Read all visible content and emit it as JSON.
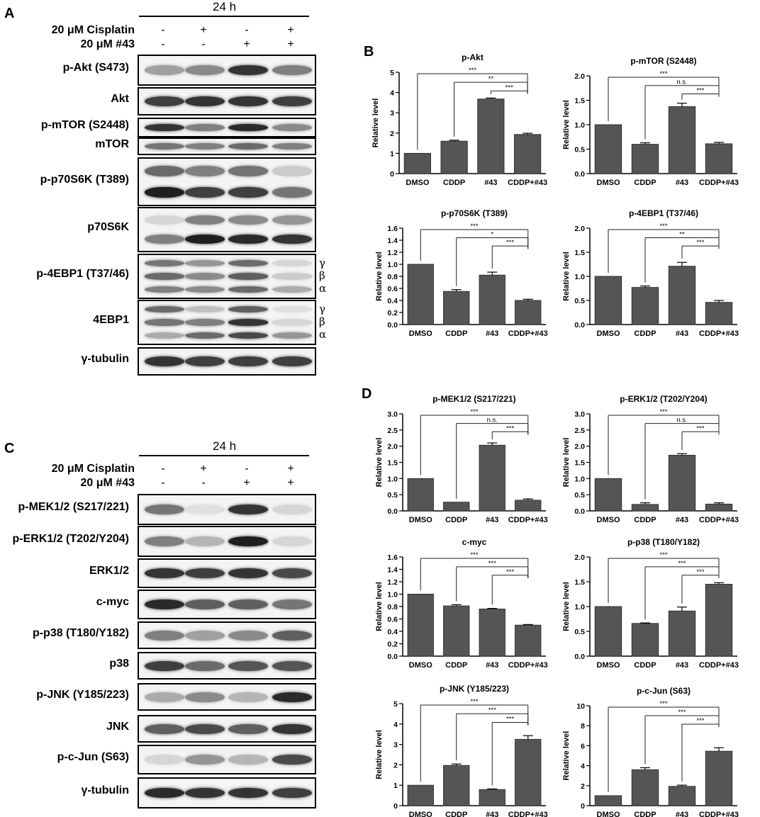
{
  "panels": {
    "A": "A",
    "B": "B",
    "C": "C",
    "D": "D"
  },
  "blotA": {
    "time": "24 h",
    "cisplatin_label": "20 μM Cisplatin",
    "c43_label": "20 μM #43",
    "cisplatin_signs": [
      "-",
      "+",
      "-",
      "+"
    ],
    "c43_signs": [
      "-",
      "-",
      "+",
      "+"
    ],
    "rows": [
      {
        "label": "p-Akt (S473)",
        "bands": [
          [
            0.35
          ],
          [
            0.45
          ],
          [
            0.85
          ],
          [
            0.5
          ]
        ]
      },
      {
        "label": "Akt",
        "bands": [
          [
            0.8
          ],
          [
            0.85
          ],
          [
            0.85
          ],
          [
            0.8
          ]
        ]
      },
      {
        "label": "p-mTOR (S2448)",
        "bands": [
          [
            0.85
          ],
          [
            0.5
          ],
          [
            0.9
          ],
          [
            0.45
          ]
        ]
      },
      {
        "label": "mTOR",
        "bands": [
          [
            0.55
          ],
          [
            0.5
          ],
          [
            0.6
          ],
          [
            0.5
          ]
        ]
      },
      {
        "label": "p-p70S6K (T389)",
        "bands": [
          [
            0.6,
            0.95
          ],
          [
            0.5,
            0.8
          ],
          [
            0.55,
            0.8
          ],
          [
            0.15,
            0.55
          ]
        ]
      },
      {
        "label": "p70S6K",
        "bands": [
          [
            0.1,
            0.5
          ],
          [
            0.5,
            0.95
          ],
          [
            0.45,
            0.9
          ],
          [
            0.4,
            0.85
          ]
        ]
      },
      {
        "label": "p-4EBP1 (T37/46)",
        "bands": [
          [
            0.55,
            0.6,
            0.5
          ],
          [
            0.4,
            0.45,
            0.45
          ],
          [
            0.6,
            0.65,
            0.6
          ],
          [
            0.1,
            0.15,
            0.3
          ]
        ]
      },
      {
        "label": "4EBP1",
        "bands": [
          [
            0.6,
            0.55,
            0.3
          ],
          [
            0.2,
            0.5,
            0.6
          ],
          [
            0.65,
            0.85,
            0.75
          ],
          [
            0.05,
            0.1,
            0.4
          ]
        ]
      },
      {
        "label": "γ-tubulin",
        "bands": [
          [
            0.85
          ],
          [
            0.8
          ],
          [
            0.8
          ],
          [
            0.8
          ]
        ]
      }
    ],
    "greek_4ebp1p": [
      "γ",
      "β",
      "α"
    ],
    "greek_4ebp1": [
      "γ",
      "β",
      "α"
    ]
  },
  "blotC": {
    "time": "24 h",
    "cisplatin_label": "20 μM Cisplatin",
    "c43_label": "20 μM #43",
    "cisplatin_signs": [
      "-",
      "+",
      "-",
      "+"
    ],
    "c43_signs": [
      "-",
      "-",
      "+",
      "+"
    ],
    "rows": [
      {
        "label": "p-MEK1/2 (S217/221)",
        "bands": [
          [
            0.55
          ],
          [
            0.05
          ],
          [
            0.85
          ],
          [
            0.1
          ]
        ]
      },
      {
        "label": "p-ERK1/2 (T202/Y204)",
        "bands": [
          [
            0.5
          ],
          [
            0.25
          ],
          [
            0.95
          ],
          [
            0.1
          ]
        ]
      },
      {
        "label": "ERK1/2",
        "bands": [
          [
            0.85
          ],
          [
            0.8
          ],
          [
            0.85
          ],
          [
            0.75
          ]
        ]
      },
      {
        "label": "c-myc",
        "bands": [
          [
            0.9
          ],
          [
            0.65
          ],
          [
            0.65
          ],
          [
            0.55
          ]
        ]
      },
      {
        "label": "p-p38 (T180/Y182)",
        "bands": [
          [
            0.5
          ],
          [
            0.35
          ],
          [
            0.45
          ],
          [
            0.65
          ]
        ]
      },
      {
        "label": "p38",
        "bands": [
          [
            0.8
          ],
          [
            0.6
          ],
          [
            0.7
          ],
          [
            0.7
          ]
        ]
      },
      {
        "label": "p-JNK (Y185/223)",
        "bands": [
          [
            0.3
          ],
          [
            0.45
          ],
          [
            0.25
          ],
          [
            0.9
          ]
        ]
      },
      {
        "label": "JNK",
        "bands": [
          [
            0.65
          ],
          [
            0.75
          ],
          [
            0.65
          ],
          [
            0.85
          ]
        ]
      },
      {
        "label": "p-c-Jun (S63)",
        "bands": [
          [
            0.1
          ],
          [
            0.4
          ],
          [
            0.25
          ],
          [
            0.75
          ]
        ]
      },
      {
        "label": "γ-tubulin",
        "bands": [
          [
            0.9
          ],
          [
            0.85
          ],
          [
            0.85
          ],
          [
            0.8
          ]
        ]
      }
    ]
  },
  "chart_data": [
    {
      "type": "bar",
      "title": "p-Akt",
      "ylabel": "Relative level",
      "categories": [
        "DMSO",
        "CDDP",
        "#43",
        "CDDP+#43"
      ],
      "values": [
        1.0,
        1.6,
        3.68,
        1.93
      ],
      "errors": [
        0,
        0.05,
        0.05,
        0.06
      ],
      "ylim": [
        0,
        5
      ],
      "yticks": [
        "0",
        "1",
        "2",
        "3",
        "4",
        "5"
      ],
      "sig": [
        {
          "from": 0,
          "to": 3,
          "label": "***"
        },
        {
          "from": 1,
          "to": 3,
          "label": "**"
        },
        {
          "from": 2,
          "to": 3,
          "label": "***"
        }
      ]
    },
    {
      "type": "bar",
      "title": "p-mTOR (S2448)",
      "ylabel": "Relative level",
      "categories": [
        "DMSO",
        "CDDP",
        "#43",
        "CDDP+#43"
      ],
      "values": [
        1.0,
        0.6,
        1.37,
        0.61
      ],
      "errors": [
        0,
        0.03,
        0.07,
        0.03
      ],
      "ylim": [
        0,
        2.0
      ],
      "yticks": [
        "0.0",
        "0.5",
        "1.0",
        "1.5",
        "2.0"
      ],
      "sig": [
        {
          "from": 0,
          "to": 3,
          "label": "***"
        },
        {
          "from": 1,
          "to": 3,
          "label": "n.s."
        },
        {
          "from": 2,
          "to": 3,
          "label": "***"
        }
      ]
    },
    {
      "type": "bar",
      "title": "p-p70S6K (T389)",
      "ylabel": "Relative level",
      "categories": [
        "DMSO",
        "CDDP",
        "#43",
        "CDDP+#43"
      ],
      "values": [
        1.0,
        0.55,
        0.82,
        0.4
      ],
      "errors": [
        0,
        0.03,
        0.05,
        0.02
      ],
      "ylim": [
        0,
        1.6
      ],
      "yticks": [
        "0.0",
        "0.2",
        "0.4",
        "0.6",
        "0.8",
        "1.0",
        "1.2",
        "1.4",
        "1.6"
      ],
      "sig": [
        {
          "from": 0,
          "to": 3,
          "label": "***"
        },
        {
          "from": 1,
          "to": 3,
          "label": "*"
        },
        {
          "from": 2,
          "to": 3,
          "label": "***"
        }
      ]
    },
    {
      "type": "bar",
      "title": "p-4EBP1 (T37/46)",
      "ylabel": "Relative level",
      "categories": [
        "DMSO",
        "CDDP",
        "#43",
        "CDDP+#43"
      ],
      "values": [
        1.0,
        0.77,
        1.21,
        0.46
      ],
      "errors": [
        0,
        0.03,
        0.08,
        0.04
      ],
      "ylim": [
        0,
        2.0
      ],
      "yticks": [
        "0.0",
        "0.5",
        "1.0",
        "1.5",
        "2.0"
      ],
      "sig": [
        {
          "from": 0,
          "to": 3,
          "label": "***"
        },
        {
          "from": 1,
          "to": 3,
          "label": "**"
        },
        {
          "from": 2,
          "to": 3,
          "label": "***"
        }
      ]
    },
    {
      "type": "bar",
      "title": "p-MEK1/2 (S217/221)",
      "ylabel": "Relative level",
      "categories": [
        "DMSO",
        "CDDP",
        "#43",
        "CDDP+#43"
      ],
      "values": [
        1.0,
        0.27,
        2.03,
        0.33
      ],
      "errors": [
        0,
        0,
        0.07,
        0.04
      ],
      "ylim": [
        0,
        3.0
      ],
      "yticks": [
        "0.0",
        "0.5",
        "1.0",
        "1.5",
        "2.0",
        "2.5",
        "3.0"
      ],
      "sig": [
        {
          "from": 0,
          "to": 3,
          "label": "***"
        },
        {
          "from": 1,
          "to": 3,
          "label": "n.s."
        },
        {
          "from": 2,
          "to": 3,
          "label": "***"
        }
      ]
    },
    {
      "type": "bar",
      "title": "p-ERK1/2 (T202/Y204)",
      "ylabel": "Relative level",
      "categories": [
        "DMSO",
        "CDDP",
        "#43",
        "CDDP+#43"
      ],
      "values": [
        1.0,
        0.2,
        1.72,
        0.21
      ],
      "errors": [
        0,
        0.05,
        0.05,
        0.04
      ],
      "ylim": [
        0,
        3.0
      ],
      "yticks": [
        "0.0",
        "0.5",
        "1.0",
        "1.5",
        "2.0",
        "2.5",
        "3.0"
      ],
      "sig": [
        {
          "from": 0,
          "to": 3,
          "label": "***"
        },
        {
          "from": 1,
          "to": 3,
          "label": "n.s."
        },
        {
          "from": 2,
          "to": 3,
          "label": "***"
        }
      ]
    },
    {
      "type": "bar",
      "title": "c-myc",
      "ylabel": "Relative level",
      "categories": [
        "DMSO",
        "CDDP",
        "#43",
        "CDDP+#43"
      ],
      "values": [
        1.0,
        0.81,
        0.76,
        0.5
      ],
      "errors": [
        0,
        0.02,
        0.01,
        0.01
      ],
      "ylim": [
        0,
        1.6
      ],
      "yticks": [
        "0.0",
        "0.2",
        "0.4",
        "0.6",
        "0.8",
        "1.0",
        "1.2",
        "1.4",
        "1.6"
      ],
      "sig": [
        {
          "from": 0,
          "to": 3,
          "label": "***"
        },
        {
          "from": 1,
          "to": 3,
          "label": "***"
        },
        {
          "from": 2,
          "to": 3,
          "label": "***"
        }
      ]
    },
    {
      "type": "bar",
      "title": "p-p38 (T180/Y182)",
      "ylabel": "Relative level",
      "categories": [
        "DMSO",
        "CDDP",
        "#43",
        "CDDP+#43"
      ],
      "values": [
        1.0,
        0.66,
        0.91,
        1.45
      ],
      "errors": [
        0,
        0.01,
        0.08,
        0.03
      ],
      "ylim": [
        0,
        2.0
      ],
      "yticks": [
        "0.0",
        "0.5",
        "1.0",
        "1.5",
        "2.0"
      ],
      "sig": [
        {
          "from": 0,
          "to": 3,
          "label": "***"
        },
        {
          "from": 1,
          "to": 3,
          "label": "***"
        },
        {
          "from": 2,
          "to": 3,
          "label": "***"
        }
      ]
    },
    {
      "type": "bar",
      "title": "p-JNK (Y185/223)",
      "ylabel": "Relative level",
      "categories": [
        "DMSO",
        "CDDP",
        "#43",
        "CDDP+#43"
      ],
      "values": [
        1.0,
        1.97,
        0.79,
        3.25
      ],
      "errors": [
        0,
        0.07,
        0.03,
        0.18
      ],
      "ylim": [
        0,
        5
      ],
      "yticks": [
        "0",
        "1",
        "2",
        "3",
        "4",
        "5"
      ],
      "sig": [
        {
          "from": 0,
          "to": 3,
          "label": "***"
        },
        {
          "from": 1,
          "to": 3,
          "label": "***"
        },
        {
          "from": 2,
          "to": 3,
          "label": "***"
        }
      ]
    },
    {
      "type": "bar",
      "title": "p-c-Jun (S63)",
      "ylabel": "Relative level",
      "categories": [
        "DMSO",
        "CDDP",
        "#43",
        "CDDP+#43"
      ],
      "values": [
        1.0,
        3.6,
        1.93,
        5.45
      ],
      "errors": [
        0,
        0.2,
        0.12,
        0.35
      ],
      "ylim": [
        0,
        10
      ],
      "yticks": [
        "0",
        "2",
        "4",
        "6",
        "8",
        "10"
      ],
      "sig": [
        {
          "from": 0,
          "to": 3,
          "label": "***"
        },
        {
          "from": 1,
          "to": 3,
          "label": "***"
        },
        {
          "from": 2,
          "to": 3,
          "label": "***"
        }
      ]
    }
  ]
}
